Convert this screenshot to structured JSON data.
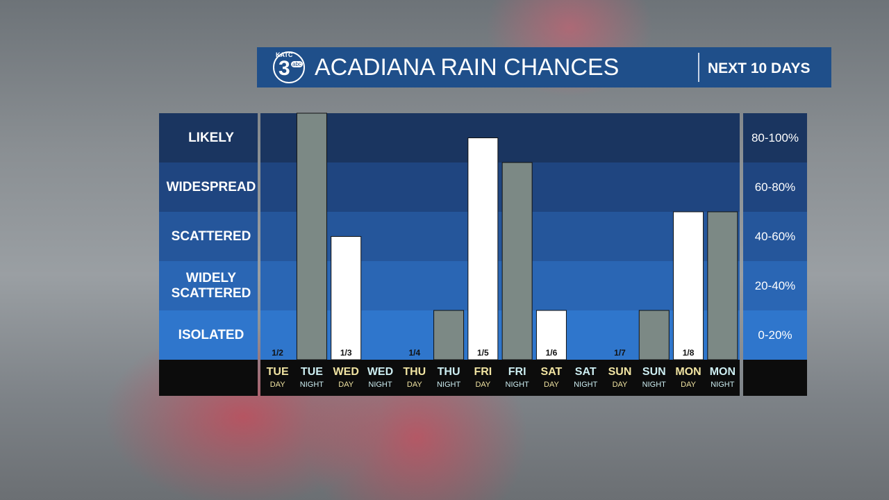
{
  "header": {
    "logo": {
      "station": "KATC",
      "number": "3",
      "network": "abc"
    },
    "title": "ACADIANA RAIN CHANCES",
    "subtitle": "NEXT 10 DAYS"
  },
  "chart_data": {
    "type": "bar",
    "categories": [
      {
        "day": "TUE",
        "period": "DAY",
        "date": "1/2"
      },
      {
        "day": "TUE",
        "period": "NIGHT",
        "date": null
      },
      {
        "day": "WED",
        "period": "DAY",
        "date": "1/3"
      },
      {
        "day": "WED",
        "period": "NIGHT",
        "date": null
      },
      {
        "day": "THU",
        "period": "DAY",
        "date": "1/4"
      },
      {
        "day": "THU",
        "period": "NIGHT",
        "date": null
      },
      {
        "day": "FRI",
        "period": "DAY",
        "date": "1/5"
      },
      {
        "day": "FRI",
        "period": "NIGHT",
        "date": null
      },
      {
        "day": "SAT",
        "period": "DAY",
        "date": "1/6"
      },
      {
        "day": "SAT",
        "period": "NIGHT",
        "date": null
      },
      {
        "day": "SUN",
        "period": "DAY",
        "date": "1/7"
      },
      {
        "day": "SUN",
        "period": "NIGHT",
        "date": null
      },
      {
        "day": "MON",
        "period": "DAY",
        "date": "1/8"
      },
      {
        "day": "MON",
        "period": "NIGHT",
        "date": null
      }
    ],
    "values": [
      0,
      100,
      50,
      0,
      0,
      20,
      90,
      80,
      20,
      0,
      0,
      20,
      60,
      60
    ],
    "day_color": "#ffffff",
    "night_color": "#7c8985",
    "ylim": [
      0,
      100
    ],
    "bands": [
      {
        "label": "ISOLATED",
        "range": "0-20%",
        "color": "#2f76cc"
      },
      {
        "label": "WIDELY SCATTERED",
        "range": "20-40%",
        "color": "#2a66b4"
      },
      {
        "label": "SCATTERED",
        "range": "40-60%",
        "color": "#25569b"
      },
      {
        "label": "WIDESPREAD",
        "range": "60-80%",
        "color": "#1f4580"
      },
      {
        "label": "LIKELY",
        "range": "80-100%",
        "color": "#1a3560"
      }
    ]
  }
}
